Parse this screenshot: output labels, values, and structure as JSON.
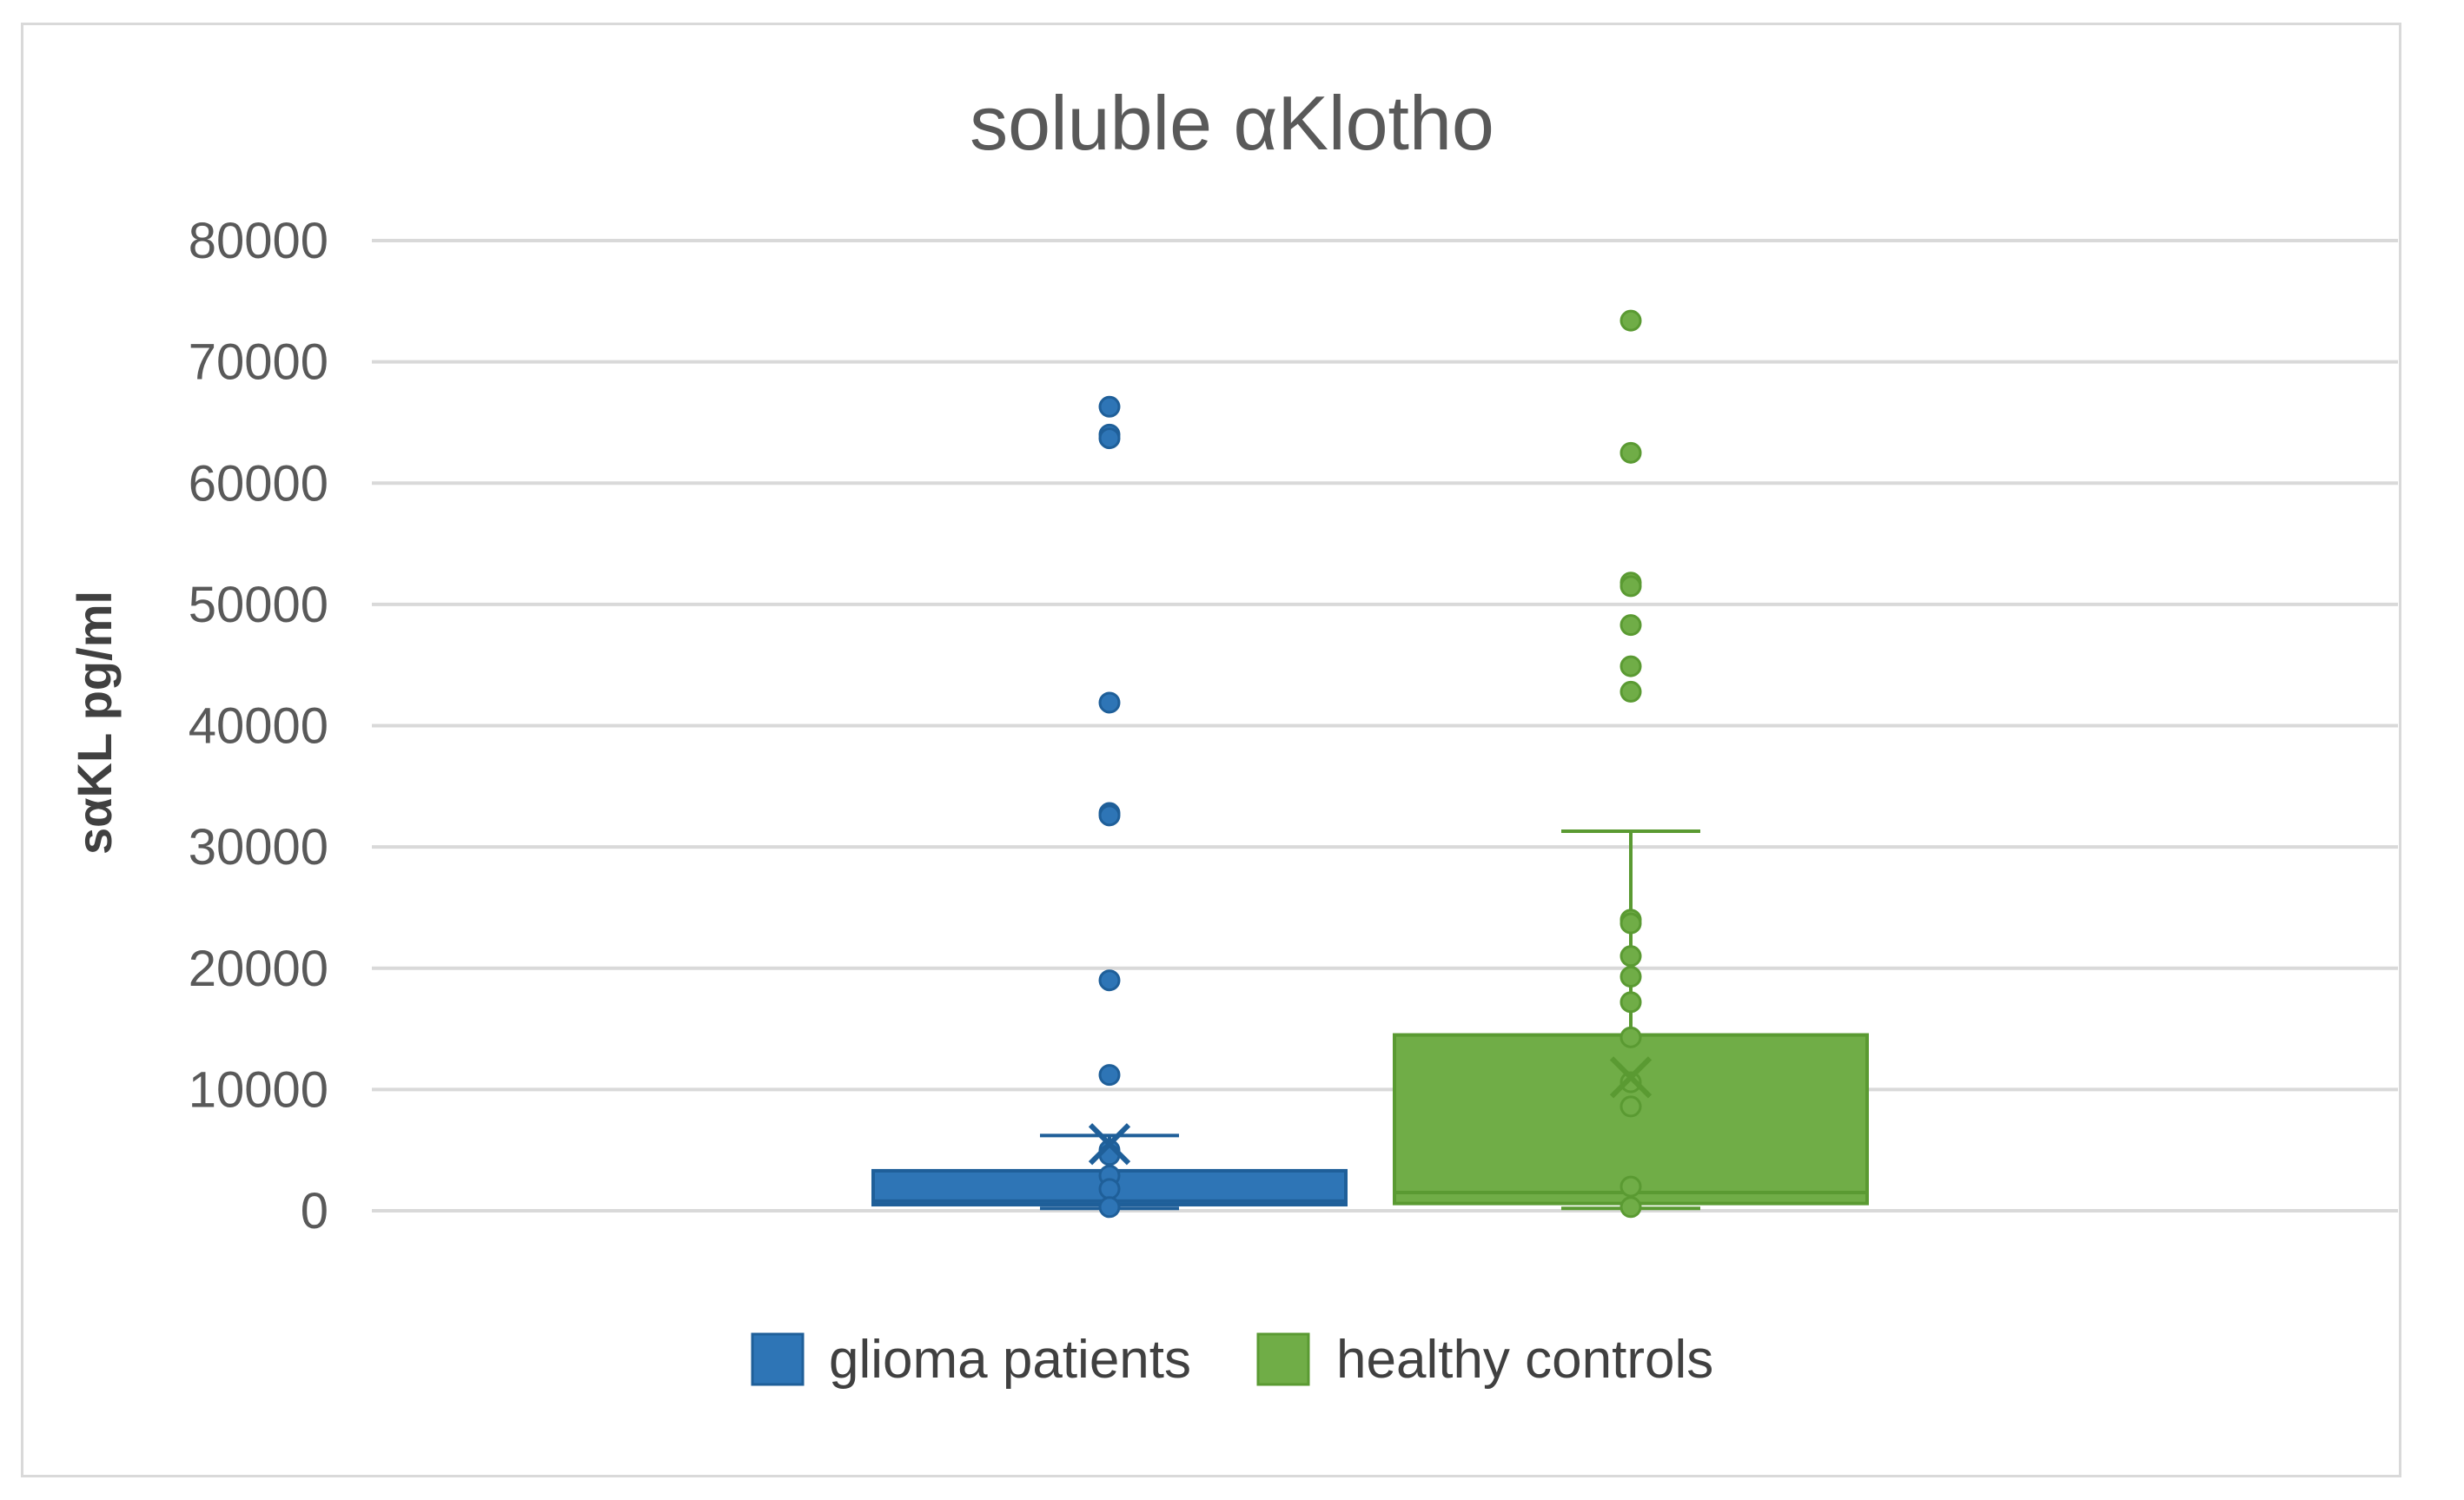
{
  "chart_data": {
    "type": "box",
    "title": "soluble αKlotho",
    "ylabel": "sαKL pg/ml",
    "xlabel": "",
    "ylim": [
      0,
      80000
    ],
    "y_ticks": [
      "0",
      "10000",
      "20000",
      "30000",
      "40000",
      "50000",
      "60000",
      "70000",
      "80000"
    ],
    "grid": true,
    "legend_position": "bottom",
    "series": [
      {
        "name": "glioma patients",
        "color": "#2e75b6",
        "whisker_low": 200,
        "q1": 500,
        "median": 800,
        "q3": 3300,
        "whisker_high": 6200,
        "mean": 5500,
        "points": [
          66300,
          64000,
          63700,
          41900,
          32800,
          32600,
          19000,
          11200,
          5000,
          4600,
          2900,
          1800,
          300
        ]
      },
      {
        "name": "healthy controls",
        "color": "#70ad47",
        "whisker_low": 200,
        "q1": 600,
        "median": 1500,
        "q3": 14500,
        "whisker_high": 31300,
        "mean": 11000,
        "points": [
          73400,
          62500,
          51800,
          51500,
          48300,
          44900,
          42800,
          24000,
          23700,
          21000,
          19300,
          17200,
          14300,
          10600,
          8600,
          2000,
          300
        ]
      }
    ]
  }
}
